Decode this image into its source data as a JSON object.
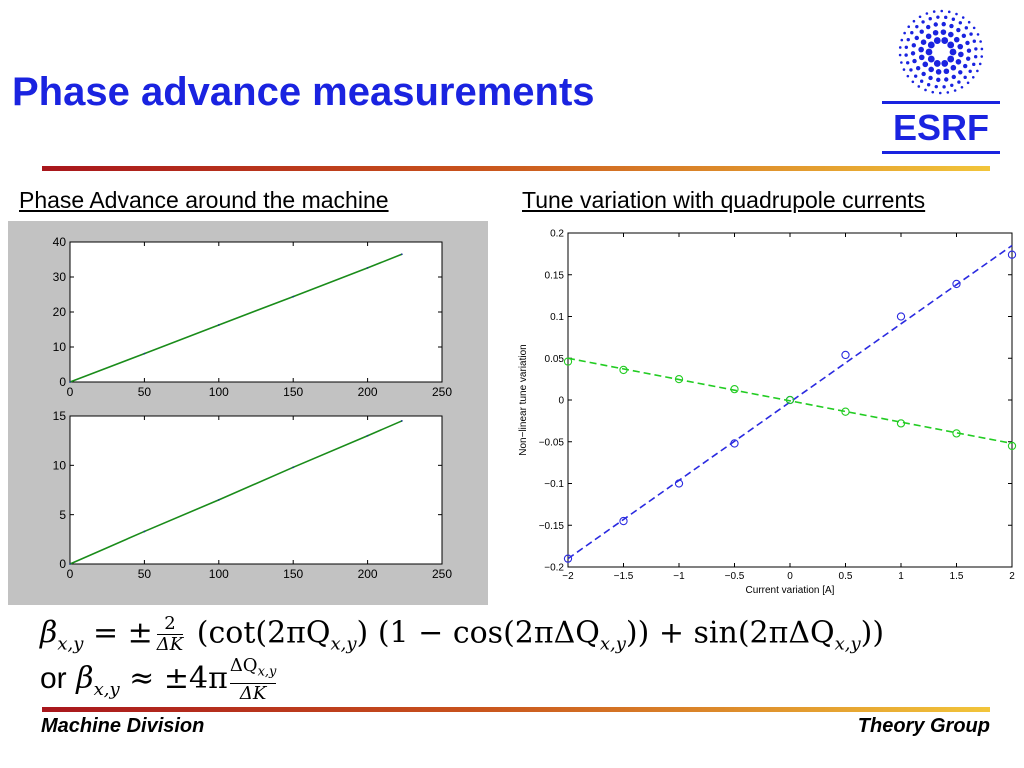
{
  "title": "Phase advance measurements",
  "logo": {
    "text": "ESRF",
    "color": "#1a23e0"
  },
  "colors": {
    "title": "#1a23e0",
    "blue_series": "#2a2ae0",
    "green_series": "#22cc22"
  },
  "left_panel": {
    "subtitle": "Phase Advance around the machine"
  },
  "right_panel": {
    "subtitle": "Tune variation with quadrupole currents"
  },
  "chart_data": [
    {
      "type": "line",
      "xlim": [
        0,
        250
      ],
      "ylim": [
        0,
        40
      ],
      "x_ticks": [
        0,
        50,
        100,
        150,
        200,
        250
      ],
      "y_ticks": [
        0,
        10,
        20,
        30,
        40
      ],
      "series": [
        {
          "color": "#1a8c1a",
          "x": [
            0,
            50,
            100,
            150,
            200,
            223
          ],
          "y": [
            0,
            8.1,
            16.3,
            24.4,
            32.6,
            36.5
          ]
        }
      ]
    },
    {
      "type": "line",
      "xlim": [
        0,
        250
      ],
      "ylim": [
        0,
        15
      ],
      "x_ticks": [
        0,
        50,
        100,
        150,
        200,
        250
      ],
      "y_ticks": [
        0,
        5,
        10,
        15
      ],
      "series": [
        {
          "color": "#1a8c1a",
          "x": [
            0,
            50,
            100,
            150,
            200,
            223
          ],
          "y": [
            0,
            3.3,
            6.5,
            9.8,
            13.0,
            14.5
          ]
        }
      ]
    },
    {
      "type": "scatter",
      "xlabel": "Current variation [A]",
      "ylabel": "Non−linear tune variation",
      "xlim": [
        -2,
        2
      ],
      "ylim": [
        -0.2,
        0.2
      ],
      "x_ticks": [
        -2,
        -1.5,
        -1,
        -0.5,
        0,
        0.5,
        1,
        1.5,
        2
      ],
      "y_ticks": [
        -0.2,
        -0.15,
        -0.1,
        -0.05,
        0,
        0.05,
        0.1,
        0.15,
        0.2
      ],
      "x_tick_labels": [
        "−2",
        "−1.5",
        "−1",
        "−0.5",
        "0",
        "0.5",
        "1",
        "1.5",
        "2"
      ],
      "y_tick_labels": [
        "−0.2",
        "−0.15",
        "−0.1",
        "−0.05",
        "0",
        "0.05",
        "0.1",
        "0.15",
        "0.2"
      ],
      "series": [
        {
          "color": "#2a2ae0",
          "x": [
            -2,
            -1.5,
            -1,
            -0.5,
            0,
            0.5,
            1,
            1.5,
            2
          ],
          "y": [
            -0.19,
            -0.145,
            -0.1,
            -0.052,
            0,
            0.054,
            0.1,
            0.139,
            0.174
          ],
          "fit": [
            [
              -2,
              -0.19
            ],
            [
              2,
              0.185
            ]
          ]
        },
        {
          "color": "#22cc22",
          "x": [
            -2,
            -1.5,
            -1,
            -0.5,
            0,
            0.5,
            1,
            1.5,
            2
          ],
          "y": [
            0.046,
            0.036,
            0.025,
            0.013,
            0,
            -0.014,
            -0.028,
            -0.04,
            -0.055
          ],
          "fit": [
            [
              -2,
              0.05
            ],
            [
              2,
              -0.052
            ]
          ]
        }
      ]
    }
  ],
  "formula": {
    "beta": "β",
    "sub_xy": "x,y",
    "eq": "=",
    "pm": "±",
    "approx": "≈",
    "two": "2",
    "delta_k": "ΔK",
    "cot_open": "(cot(2πQ",
    "close_paren": ")",
    "one_minus": "(1 − cos(2πΔQ",
    "plus_sin": ")) + sin(2πΔQ",
    "final_close": "))",
    "or": "or",
    "four_pi": "4π",
    "delta_q": "ΔQ"
  },
  "footer": {
    "left": "Machine Division",
    "right": "Theory Group"
  }
}
